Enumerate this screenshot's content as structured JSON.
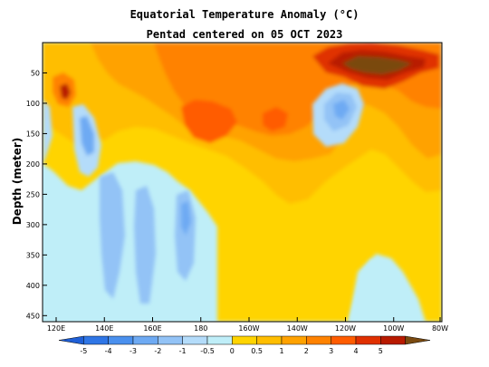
{
  "chart_data": {
    "type": "heatmap",
    "title": "Equatorial Temperature Anomaly (°C)",
    "subtitle": "Pentad centered on 05 OCT 2023",
    "xlabel": "",
    "ylabel": "Depth (meter)",
    "x_ticks": [
      "120E",
      "140E",
      "160E",
      "180",
      "160W",
      "140W",
      "120W",
      "100W",
      "80W"
    ],
    "y_ticks": [
      "50",
      "100",
      "150",
      "200",
      "250",
      "300",
      "350",
      "400",
      "450"
    ],
    "y_range": [
      0,
      460
    ],
    "colorbar": {
      "tick_labels": [
        "-5",
        "-4",
        "-3",
        "-2",
        "-1",
        "-0.5",
        "0",
        "0.5",
        "1",
        "2",
        "3",
        "4",
        "5"
      ],
      "colors": [
        "#1f5fd6",
        "#2f76e6",
        "#4a90ee",
        "#6eaaf3",
        "#93c3f6",
        "#b4dcfa",
        "#bfeef8",
        "#ffd400",
        "#ffbe00",
        "#ffa200",
        "#ff8200",
        "#ff5c00",
        "#e03000",
        "#b81a00",
        "#7a4a10"
      ]
    }
  }
}
